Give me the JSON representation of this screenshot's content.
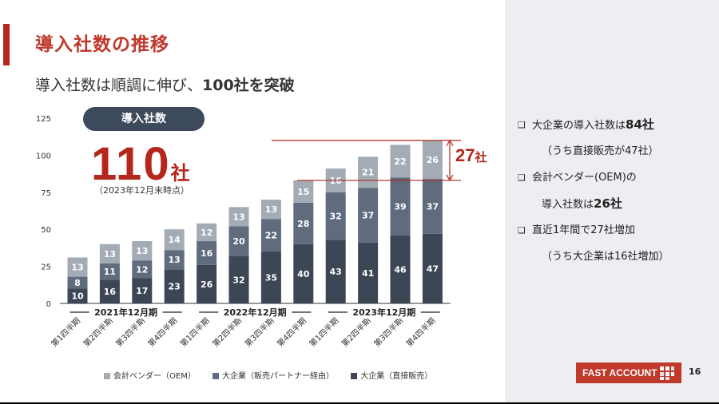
{
  "slide": {
    "title": "導入社数の推移",
    "subtitle_pre": "導入社数は順調に伸び、",
    "subtitle_bold": "100社を突破",
    "page_number": "16",
    "brand": "FAST ACCOUNTING"
  },
  "highlight": {
    "pill_label": "導入社数",
    "total_value": "110",
    "total_unit": "社",
    "note": "（2023年12月末時点）",
    "increase_value": "27",
    "increase_unit": "社"
  },
  "bullets": [
    {
      "pre": "大企業の導入社数は",
      "bold": "84社"
    },
    {
      "text": "（うち直接販売が47社）"
    },
    {
      "pre": "会計ベンダー(OEM)の"
    },
    {
      "pre": "導入社数は",
      "bold": "26社"
    },
    {
      "pre": "直近1年間で27社増加"
    },
    {
      "text": "（うち大企業は16社増加）"
    }
  ],
  "chart_data": {
    "type": "bar",
    "stacked": true,
    "categories": [
      "第1四半期",
      "第2四半期",
      "第3四半期",
      "第4四半期",
      "第1四半期",
      "第2四半期",
      "第3四半期",
      "第4四半期",
      "第1四半期",
      "第2四半期",
      "第3四半期",
      "第4四半期"
    ],
    "groups": [
      {
        "label": "2021年12月期",
        "start": 0,
        "end": 3
      },
      {
        "label": "2022年12月期",
        "start": 4,
        "end": 7
      },
      {
        "label": "2023年12月期",
        "start": 8,
        "end": 11
      }
    ],
    "series": [
      {
        "name": "大企業（直接販売）",
        "color": "#3d4655",
        "values": [
          10,
          16,
          17,
          23,
          26,
          32,
          35,
          40,
          43,
          41,
          46,
          47
        ]
      },
      {
        "name": "大企業（販売パートナー経由）",
        "color": "#5f6c7e",
        "values": [
          8,
          11,
          12,
          13,
          16,
          20,
          22,
          28,
          32,
          37,
          39,
          37
        ]
      },
      {
        "name": "会計ベンダー（OEM）",
        "color": "#a3abb5",
        "values": [
          13,
          13,
          13,
          14,
          12,
          13,
          13,
          15,
          16,
          21,
          22,
          26
        ]
      }
    ],
    "legend_order": [
      2,
      1,
      0
    ],
    "ylim": [
      0,
      125
    ],
    "yticks": [
      0,
      25,
      50,
      75,
      100,
      125
    ],
    "grid": false
  }
}
